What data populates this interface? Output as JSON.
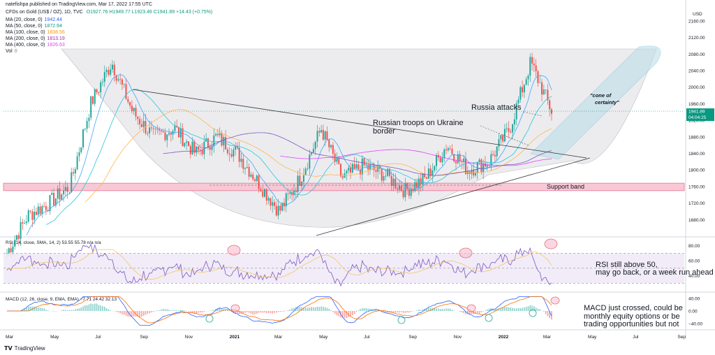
{
  "header": {
    "published": "natefishpa published on TradingView.com, Mar 17, 2022 17:55 UTC",
    "symbol": "CFDs on Gold (US$ / OZ), 1D, TVC",
    "ohlc": "O1927.76 H1949.77 L1923.46 C1941.89 +14.43 (+0.75%)",
    "indicators": [
      {
        "label": "MA (20, close, 0)",
        "value": "1942.44",
        "color": "#2962ff"
      },
      {
        "label": "MA (50, close, 0)",
        "value": "1872.94",
        "color": "#089981"
      },
      {
        "label": "MA (100, close, 0)",
        "value": "1838.56",
        "color": "#ff9800"
      },
      {
        "label": "MA (200, close, 0)",
        "value": "1813.19",
        "color": "#9c27b0"
      },
      {
        "label": "MA (400, close, 0)",
        "value": "1826.63",
        "color": "#e040fb"
      },
      {
        "label": "Vol",
        "value": "0",
        "color": "#787b86"
      }
    ]
  },
  "currency": "USD",
  "price_label": "1941.89",
  "countdown": "04:04:25",
  "annotations": {
    "cone": "\"cone of certainty\"",
    "russia_attacks": "Russia attacks",
    "troops": "Russian troops on Ukraine border",
    "support": "Support band",
    "rsi_note": "RSI still above 50, may go back, or a week run ahead",
    "macd_note": "MACD just crossed, could be monthly equity options or be trading opportunities but not"
  },
  "rsi_header": "RSI (14, close, SMA, 14, 2)  53.55  55.78  n/a  n/a",
  "macd_header": "MACD (12, 26, close, 9, EMA, EMA)  −7.71  24.42  32.13",
  "footer_brand": "TradingView",
  "colors": {
    "up": "#26a69a",
    "down": "#ef5350",
    "band": "#f8c9d5",
    "cone": "#b8dde6"
  },
  "chart_data": {
    "type": "candlestick",
    "price_axis": {
      "ylim": [
        1640,
        2180
      ],
      "ticks": [
        "2160.00",
        "2120.00",
        "2080.00",
        "2040.00",
        "2000.00",
        "1960.00",
        "1920.00",
        "1880.00",
        "1840.00",
        "1800.00",
        "1760.00",
        "1720.00",
        "1680.00"
      ]
    },
    "x_labels": [
      "Mar",
      "May",
      "Jul",
      "Sep",
      "Nov",
      "2021",
      "Mar",
      "May",
      "Jul",
      "Sep",
      "Nov",
      "2022",
      "Mar",
      "May",
      "Jul",
      "Sep"
    ],
    "close_path": [
      [
        "2020-03",
        1600
      ],
      [
        "2020-04",
        1690
      ],
      [
        "2020-05",
        1720
      ],
      [
        "2020-06",
        1760
      ],
      [
        "2020-07",
        1960
      ],
      [
        "2020-08",
        2060
      ],
      [
        "2020-08b",
        1940
      ],
      [
        "2020-09",
        1880
      ],
      [
        "2020-10",
        1900
      ],
      [
        "2020-11",
        1840
      ],
      [
        "2020-12",
        1880
      ],
      [
        "2021-01",
        1840
      ],
      [
        "2021-02",
        1770
      ],
      [
        "2021-03",
        1700
      ],
      [
        "2021-04",
        1780
      ],
      [
        "2021-05",
        1900
      ],
      [
        "2021-06",
        1780
      ],
      [
        "2021-07",
        1810
      ],
      [
        "2021-08",
        1790
      ],
      [
        "2021-09",
        1750
      ],
      [
        "2021-10",
        1780
      ],
      [
        "2021-11",
        1860
      ],
      [
        "2021-12",
        1800
      ],
      [
        "2022-01",
        1820
      ],
      [
        "2022-02",
        1900
      ],
      [
        "2022-03",
        2060
      ],
      [
        "2022-03b",
        1941.89
      ]
    ],
    "support_band": [
      1750,
      1768
    ],
    "rsi": {
      "ticks": [
        "80.00",
        "60.00",
        "40.00"
      ],
      "levels": [
        70,
        50,
        30
      ],
      "last": 53.55
    },
    "macd": {
      "ticks": [
        "40.00",
        "0.00",
        "−40.00"
      ],
      "macd": -7.71,
      "signal": 24.42,
      "hist": 32.13
    }
  }
}
